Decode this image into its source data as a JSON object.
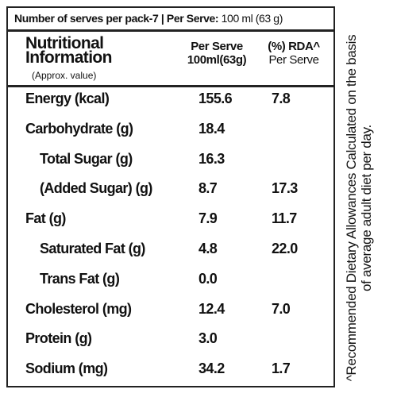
{
  "header": {
    "serves": "Number of serves per pack-7 | Per Serve:",
    "serve_size": "100 ml (63 g)"
  },
  "columns": {
    "nutrient_title": "Nutritional Information",
    "nutrient_note": "(Approx. value)",
    "per_serve": "Per Serve",
    "per_serve_unit": "100ml(63g)",
    "rda": "(%) RDA^",
    "rda_unit": "Per Serve"
  },
  "rows": [
    {
      "label": "Energy (kcal)",
      "per_serve": "155.6",
      "rda": "7.8"
    },
    {
      "label": "Carbohydrate (g)",
      "per_serve": "18.4",
      "sub_rows": [
        {
          "label": "Total Sugar (g)",
          "per_serve": "16.3"
        },
        {
          "label": "(Added Sugar) (g)",
          "per_serve": "8.7",
          "rda": "17.3"
        }
      ]
    },
    {
      "label": "Fat (g)",
      "per_serve": "7.9",
      "rda": "11.7",
      "sub_rows": [
        {
          "label": "Saturated Fat (g)",
          "per_serve": "4.8",
          "rda": "22.0"
        },
        {
          "label": "Trans Fat (g)",
          "per_serve": "0.0"
        }
      ]
    },
    {
      "label": "Cholesterol (mg)",
      "per_serve": "12.4",
      "rda": "7.0"
    },
    {
      "label": "Protein (g)",
      "per_serve": "3.0"
    },
    {
      "label": "Sodium (mg)",
      "per_serve": "34.2",
      "rda": "1.7"
    }
  ],
  "footnote": "^Recommended Dietary Allowances Calculated on the basis of average adult diet per day."
}
